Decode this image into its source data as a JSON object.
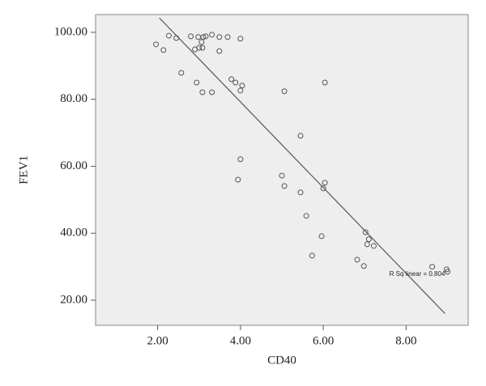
{
  "chart_data": {
    "type": "scatter",
    "x_label": "CD40",
    "y_label": "FEV1",
    "annotation": "R Sq linear = 0.804",
    "point_color": "#555555",
    "line_color": "#555555",
    "background": "#eeeeee",
    "xlim": [
      0.5,
      9.5
    ],
    "ylim": [
      12.5,
      105.3
    ],
    "xticks": [
      {
        "value": 2,
        "label": "2.00"
      },
      {
        "value": 4,
        "label": "4.00"
      },
      {
        "value": 6,
        "label": "6.00"
      },
      {
        "value": 8,
        "label": "8.00"
      }
    ],
    "yticks": [
      {
        "value": 20,
        "label": "20.00"
      },
      {
        "value": 40,
        "label": "40.00"
      },
      {
        "value": 60,
        "label": "60.00"
      },
      {
        "value": 80,
        "label": "80.00"
      },
      {
        "value": 100,
        "label": "100.00"
      }
    ],
    "x": [
      1.96,
      2.14,
      2.27,
      2.45,
      2.57,
      2.8,
      2.9,
      2.94,
      2.98,
      3.0,
      3.06,
      3.08,
      3.1,
      3.08,
      3.16,
      3.31,
      3.31,
      3.49,
      3.49,
      3.69,
      3.78,
      3.88,
      4.0,
      4.04,
      4.0,
      4.0,
      3.94,
      5.06,
      5.0,
      5.06,
      5.45,
      5.45,
      5.59,
      5.73,
      5.96,
      6.04,
      6.0,
      6.04,
      6.82,
      6.98,
      7.02,
      7.1,
      7.06,
      7.22,
      8.63,
      8.98,
      9.0
    ],
    "values": [
      96.4,
      94.7,
      99.0,
      98.3,
      87.9,
      98.8,
      94.9,
      85.0,
      98.6,
      95.4,
      97.1,
      95.4,
      98.6,
      82.1,
      98.8,
      82.1,
      99.3,
      98.6,
      94.4,
      98.6,
      86.0,
      85.0,
      98.1,
      84.1,
      82.6,
      62.1,
      56.0,
      82.4,
      57.2,
      54.1,
      69.1,
      52.2,
      45.2,
      33.3,
      39.1,
      55.1,
      53.4,
      85.0,
      32.1,
      30.2,
      40.3,
      38.2,
      36.7,
      36.2,
      30.0,
      29.2,
      28.5
    ],
    "fit_line": {
      "x": [
        2.04,
        8.94
      ],
      "values": [
        104.3,
        16.0
      ]
    }
  }
}
